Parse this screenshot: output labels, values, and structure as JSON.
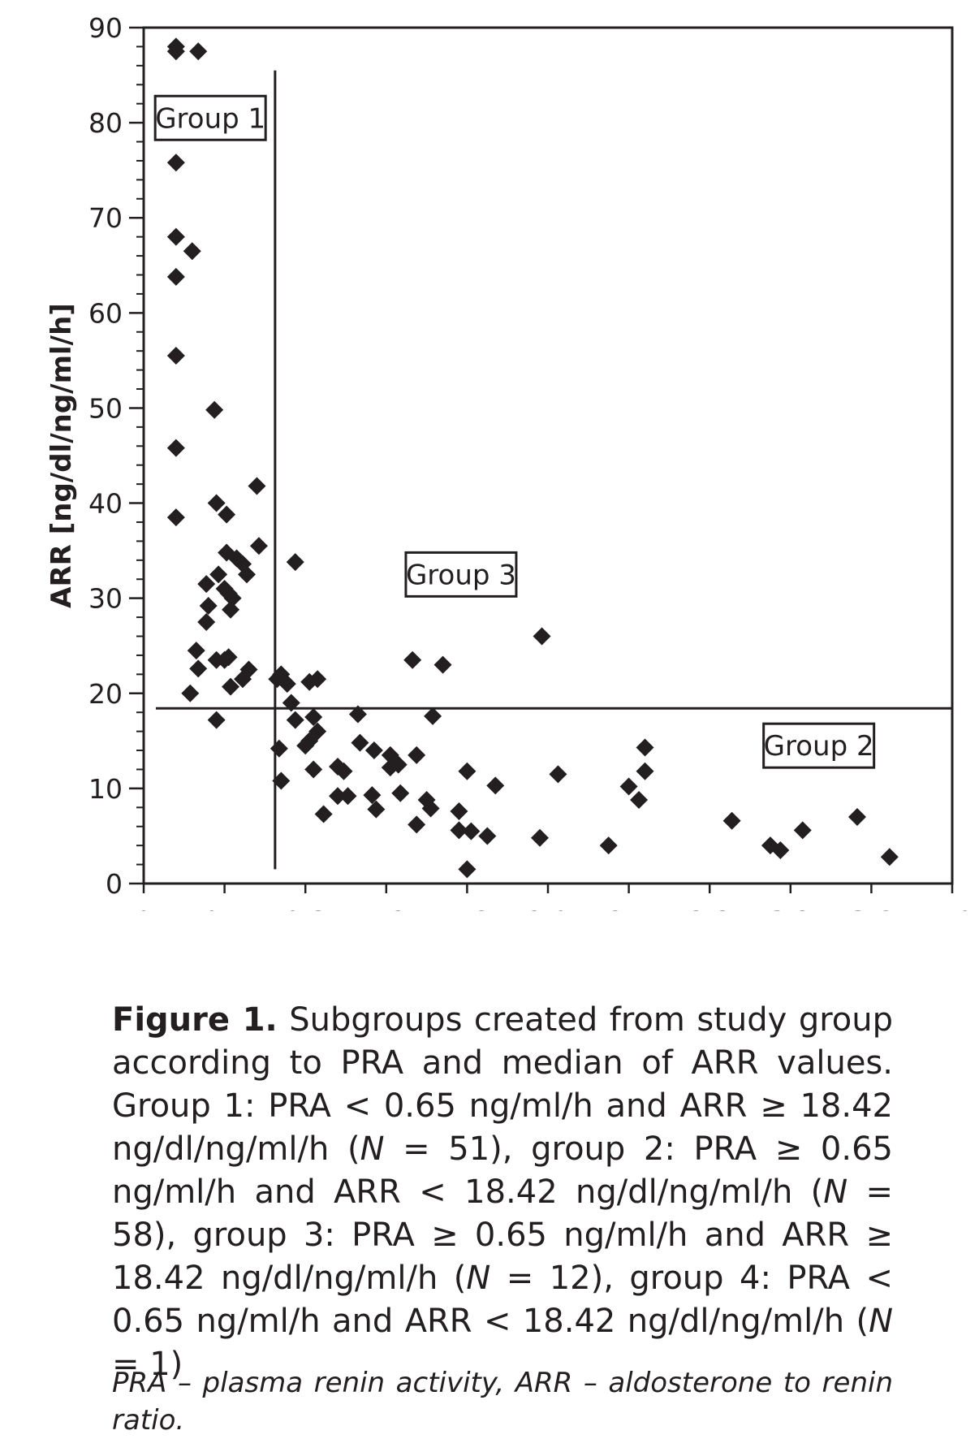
{
  "chart_data": {
    "type": "scatter",
    "title": "",
    "xlabel": "",
    "ylabel": "ARR [ng/dl/ng/ml/h]",
    "xlim": [
      0,
      4.0
    ],
    "ylim": [
      0,
      90
    ],
    "xticks": [
      "0",
      "0.4",
      "0.8",
      "1.2",
      "1.6",
      "2.0",
      "2.4",
      "2.8",
      "3.2",
      "3.6",
      "4.0"
    ],
    "yticks": [
      "0",
      "10",
      "20",
      "30",
      "40",
      "50",
      "60",
      "70",
      "80",
      "90"
    ],
    "thresholds": {
      "pra": 0.65,
      "arr": 18.42
    },
    "group_labels": [
      {
        "text": "Group 1",
        "x": 0.33,
        "y": 80.5
      },
      {
        "text": "Group 3",
        "x": 1.57,
        "y": 32.5
      },
      {
        "text": "Group 2",
        "x": 3.34,
        "y": 14.5
      }
    ],
    "points": [
      [
        0.16,
        88.0
      ],
      [
        0.16,
        87.5
      ],
      [
        0.27,
        87.5
      ],
      [
        0.16,
        75.8
      ],
      [
        0.16,
        68.0
      ],
      [
        0.24,
        66.5
      ],
      [
        0.16,
        63.8
      ],
      [
        0.16,
        55.5
      ],
      [
        0.35,
        49.8
      ],
      [
        0.16,
        45.8
      ],
      [
        0.16,
        38.5
      ],
      [
        0.36,
        40.0
      ],
      [
        0.41,
        38.8
      ],
      [
        0.56,
        41.8
      ],
      [
        0.57,
        35.5
      ],
      [
        0.41,
        34.8
      ],
      [
        0.46,
        34.2
      ],
      [
        0.49,
        33.6
      ],
      [
        0.51,
        32.5
      ],
      [
        0.37,
        32.5
      ],
      [
        0.31,
        31.5
      ],
      [
        0.4,
        31.0
      ],
      [
        0.42,
        30.5
      ],
      [
        0.44,
        30.0
      ],
      [
        0.32,
        29.2
      ],
      [
        0.43,
        28.8
      ],
      [
        0.31,
        27.5
      ],
      [
        0.26,
        24.5
      ],
      [
        0.36,
        23.5
      ],
      [
        0.4,
        23.5
      ],
      [
        0.42,
        23.8
      ],
      [
        0.27,
        22.6
      ],
      [
        0.52,
        22.5
      ],
      [
        0.49,
        21.5
      ],
      [
        0.43,
        20.7
      ],
      [
        0.23,
        20.0
      ],
      [
        0.36,
        17.2
      ],
      [
        0.68,
        22.0
      ],
      [
        0.66,
        21.5
      ],
      [
        0.71,
        21.0
      ],
      [
        0.82,
        21.2
      ],
      [
        0.86,
        21.5
      ],
      [
        0.75,
        33.8
      ],
      [
        1.33,
        23.5
      ],
      [
        1.48,
        23.0
      ],
      [
        1.97,
        26.0
      ],
      [
        0.73,
        19.0
      ],
      [
        0.75,
        17.2
      ],
      [
        0.84,
        17.5
      ],
      [
        1.06,
        17.8
      ],
      [
        1.43,
        17.6
      ],
      [
        0.86,
        16.0
      ],
      [
        0.82,
        15.0
      ],
      [
        0.8,
        14.5
      ],
      [
        0.67,
        14.2
      ],
      [
        1.07,
        14.8
      ],
      [
        1.14,
        14.0
      ],
      [
        1.22,
        13.5
      ],
      [
        1.35,
        13.5
      ],
      [
        1.26,
        12.5
      ],
      [
        1.22,
        12.2
      ],
      [
        0.84,
        12.0
      ],
      [
        0.96,
        12.3
      ],
      [
        0.99,
        11.8
      ],
      [
        1.6,
        11.8
      ],
      [
        2.05,
        11.5
      ],
      [
        2.48,
        14.3
      ],
      [
        2.48,
        11.8
      ],
      [
        0.68,
        10.8
      ],
      [
        1.74,
        10.3
      ],
      [
        2.4,
        10.2
      ],
      [
        0.96,
        9.2
      ],
      [
        1.01,
        9.2
      ],
      [
        1.13,
        9.3
      ],
      [
        1.27,
        9.5
      ],
      [
        1.4,
        8.8
      ],
      [
        1.42,
        7.9
      ],
      [
        1.15,
        7.8
      ],
      [
        1.56,
        7.6
      ],
      [
        2.45,
        8.8
      ],
      [
        0.89,
        7.3
      ],
      [
        1.35,
        6.2
      ],
      [
        1.56,
        5.6
      ],
      [
        1.62,
        5.5
      ],
      [
        1.7,
        5.0
      ],
      [
        1.96,
        4.8
      ],
      [
        2.3,
        4.0
      ],
      [
        1.6,
        1.5
      ],
      [
        2.91,
        6.6
      ],
      [
        3.1,
        4.0
      ],
      [
        3.15,
        3.5
      ],
      [
        3.26,
        5.6
      ],
      [
        3.53,
        7.0
      ],
      [
        3.69,
        2.8
      ]
    ]
  },
  "caption": {
    "fig_label": "Figure 1.",
    "text_1": " Subgroups created from study group ac­cording to PRA and median of ARR values. Group 1: PRA < 0.65 ng/ml/h and ARR ≥ 18.42 ng/dl/ng/ml/h (",
    "n_1": "N",
    "text_2": " = 51), group 2: PRA ≥ 0.65 ng/ml/h and ARR < 18.42 ng/dl/ng/ml/h (",
    "n_2": "N",
    "text_3": " = 58), group 3: PRA ≥ 0.65 ng/ml/h and ARR ≥ 18.42 ng/dl/ng/ml/h (",
    "n_3": "N",
    "text_4": " = 12), group 4: PRA < 0.65 ng/ml/h and ARR < 18.42 ng/dl/ng/ml/h (",
    "n_4": "N",
    "text_5": " = 1)"
  },
  "footnote": "PRA – plasma renin activity, ARR – aldosterone to renin ratio."
}
